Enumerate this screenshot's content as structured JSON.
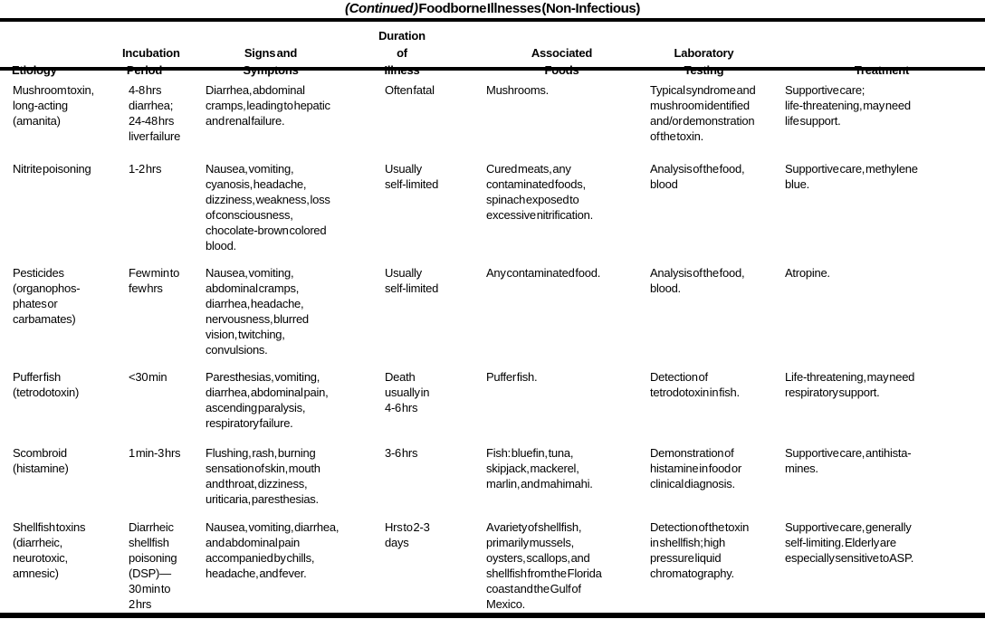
{
  "title": {
    "prefix": "(Continued )",
    "main": "Foodborne Illnesses (Non-Infectious)"
  },
  "headers": {
    "etiology": "Etiology",
    "incubation": "Incubation\nPeriod",
    "signs": "Signs and\nSymptons",
    "duration": "Duration\nof Illness",
    "foods": "Associated\nFoods",
    "lab": "Laboratory\nTesting",
    "treatment": "Treatment"
  },
  "rows": [
    {
      "etiology": "Mushroom toxin,\nlong-acting\n(amanita)",
      "incubation": "4-8 hrs\ndiarrhea;\n24-48 hrs\nliver failure",
      "signs": "Diarrhea, abdominal\ncramps, leading to hepatic\nand renal failure.",
      "duration": "Often fatal",
      "foods": "Mushrooms.",
      "lab": "Typical syndrome and\nmushroom identified\nand/or demonstration\nof the toxin.",
      "treatment": "Supportive care;\nlife-threatening, may need\nlife support."
    },
    {
      "etiology": "Nitrite poisoning",
      "incubation": "1-2 hrs",
      "signs": "Nausea, vomiting,\ncyanosis, headache,\ndizziness, weakness, loss\nof consciousness,\nchocolate-brown colored\nblood.",
      "duration": "Usually\nself-limited",
      "foods": "Cured meats, any\ncontaminated foods,\nspinach exposed to\nexcessive  nitrification.",
      "lab": "Analysis of the food,\nblood",
      "treatment": "Supportive care, methylene\nblue."
    },
    {
      "etiology": "Pesticides\n(organophos-\nphates or\ncarbamates)",
      "incubation": "Few min to\nfew hrs",
      "signs": "Nausea, vomiting,\nabdominal cramps,\ndiarrhea, headache,\nnervousness, blurred\nvision, twitching,\nconvulsions.",
      "duration": "Usually\nself-limited",
      "foods": "Any contaminated food.",
      "lab": "Analysis of the food,\nblood.",
      "treatment": "Atropine."
    },
    {
      "etiology": "Puffer fish\n(tetrodotoxin)",
      "incubation": "<30 min",
      "signs": "Paresthesias, vomiting,\ndiarrhea, abdominal pain,\nascending paralysis,\nrespiratory failure.",
      "duration": "Death\nusually in\n4-6 hrs",
      "foods": "Puffer fish.",
      "lab": "Detection of\ntetrodotoxin in fish.",
      "treatment": "Life-threatening, may need\nrespiratory support."
    },
    {
      "etiology": "Scombroid\n(histamine)",
      "incubation": "1 min-3 hrs",
      "signs": "Flushing, rash, burning\nsensation of skin, mouth\nand throat, dizziness,\nuriticaria, paresthesias.",
      "duration": "3-6 hrs",
      "foods": "Fish: bluefin, tuna,\nskipjack,  mackerel,\nmarlin, and mahimahi.",
      "lab": "Demonstration of\nhistamine in food or\nclinical diagnosis.",
      "treatment": "Supportive care, antihista-\nmines."
    },
    {
      "etiology": "Shellfish toxins\n(diarrheic,\nneurotoxic,\namnesic)",
      "incubation": "Diarrheic\nshellfish\npoisoning\n(DSP)—\n30 min to\n2 hrs",
      "signs": "Nausea, vomiting, diarrhea,\nand abdominal pain\naccompanied by chills,\nheadache, and fever.",
      "duration": "Hrs to 2-3\ndays",
      "foods": "A variety of shellfish,\nprimarily mussels,\noysters, scallops, and\nshellfish from the Florida\ncoast and the Gulf of\nMexico.",
      "lab": "Detection of the toxin\nin shellfish; high\npressure liquid\nchromatography.",
      "treatment": "Supportive care, generally\nself-limiting. Elderly are\nespecially sensitive to ASP."
    }
  ]
}
